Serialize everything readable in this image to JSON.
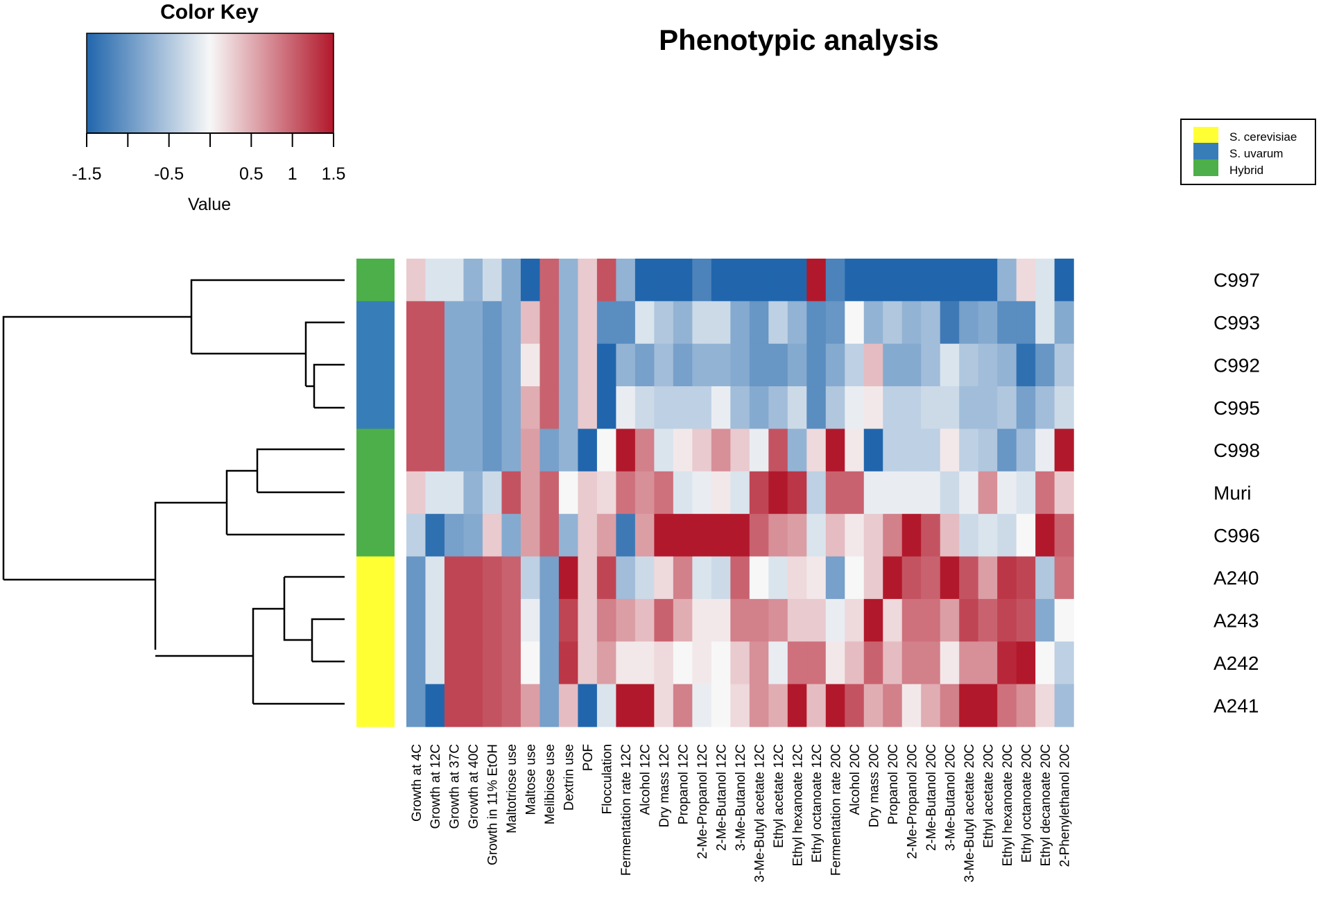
{
  "chart_data": {
    "type": "heatmap",
    "title": "Phenotypic analysis",
    "color_key": {
      "title": "Color Key",
      "xlabel": "Value",
      "range": [
        -1.5,
        1.5
      ],
      "tick_labels": [
        "-1.5",
        "-0.5",
        "0.5",
        "1",
        "1.5"
      ],
      "low_color": "#2166ac",
      "mid_color": "#f7f7f7",
      "high_color": "#b2182b"
    },
    "legend": {
      "position": "top-right",
      "entries": [
        {
          "label": "S. cerevisiae",
          "color": "#ffff33"
        },
        {
          "label": "S. uvarum",
          "color": "#377eb8"
        },
        {
          "label": "Hybrid",
          "color": "#4daf4a"
        }
      ]
    },
    "rows": [
      "C997",
      "C993",
      "C992",
      "C995",
      "C998",
      "Muri",
      "C996",
      "A240",
      "A243",
      "A242",
      "A241"
    ],
    "row_groups": [
      "Hybrid",
      "S. uvarum",
      "S. uvarum",
      "S. uvarum",
      "Hybrid",
      "Hybrid",
      "Hybrid",
      "S. cerevisiae",
      "S. cerevisiae",
      "S. cerevisiae",
      "S. cerevisiae"
    ],
    "columns": [
      "Growth at 4C",
      "Growth at 12C",
      "Growth at 37C",
      "Growth at 40C",
      "Growth in 11% EtOH",
      "Maltotriose use",
      "Maltose use",
      "Melibiose use",
      "Dextrin use",
      "POF",
      "Flocculation",
      "Fermentation rate 12C",
      "Alcohol 12C",
      "Dry mass 12C",
      "Propanol 12C",
      "2-Me-Propanol 12C",
      "2-Me-Butanol 12C",
      "3-Me-Butanol 12C",
      "3-Me-Butyl acetate 12C",
      "Ethyl acetate 12C",
      "Ethyl hexanoate 12C",
      "Ethyl octanoate 12C",
      "Fermentation rate 20C",
      "Alcohol 20C",
      "Dry mass 20C",
      "Propanol 20C",
      "2-Me-Propanol 20C",
      "2-Me-Butanol 20C",
      "3-Me-Butanol 20C",
      "3-Me-Butyl acetate 20C",
      "Ethyl acetate 20C",
      "Ethyl hexanoate 20C",
      "Ethyl octanoate 20C",
      "Ethyl decanoate 20C",
      "2-Phenylethanol 20C"
    ],
    "values": [
      [
        0.3,
        -0.2,
        -0.2,
        -0.7,
        -0.3,
        -0.8,
        -1.5,
        1.0,
        -0.7,
        0.3,
        1.1,
        -0.7,
        -1.5,
        -1.5,
        -1.5,
        -1.2,
        -1.5,
        -1.5,
        -1.5,
        -1.5,
        -1.5,
        1.5,
        -1.2,
        -1.5,
        -1.5,
        -1.5,
        -1.5,
        -1.5,
        -1.5,
        -1.5,
        -1.5,
        -0.7,
        0.2,
        -0.2,
        -1.5
      ],
      [
        1.1,
        1.1,
        -0.8,
        -0.8,
        -1.0,
        -0.8,
        0.4,
        1.0,
        -0.7,
        0.3,
        -1.1,
        -1.1,
        -0.2,
        -0.5,
        -0.7,
        -0.3,
        -0.3,
        -0.8,
        -1.0,
        -0.4,
        -0.7,
        -1.1,
        -1.0,
        0.0,
        -0.7,
        -0.5,
        -0.7,
        -0.6,
        -1.3,
        -0.9,
        -0.8,
        -1.1,
        -1.1,
        -0.2,
        -0.8
      ],
      [
        1.1,
        1.1,
        -0.8,
        -0.8,
        -1.0,
        -0.8,
        0.1,
        1.0,
        -0.7,
        0.3,
        -1.5,
        -0.7,
        -0.9,
        -0.6,
        -0.9,
        -0.7,
        -0.7,
        -0.8,
        -1.0,
        -1.0,
        -0.8,
        -1.1,
        -0.8,
        -0.4,
        0.4,
        -0.8,
        -0.8,
        -0.6,
        -0.2,
        -0.5,
        -0.6,
        -0.7,
        -1.4,
        -1.0,
        -0.5
      ],
      [
        1.1,
        1.1,
        -0.8,
        -0.8,
        -1.0,
        -0.8,
        0.5,
        1.0,
        -0.7,
        0.3,
        -1.5,
        -0.1,
        -0.3,
        -0.4,
        -0.4,
        -0.4,
        -0.1,
        -0.6,
        -0.8,
        -0.6,
        -0.3,
        -1.1,
        -0.5,
        -0.1,
        0.1,
        -0.4,
        -0.4,
        -0.3,
        -0.3,
        -0.6,
        -0.6,
        -0.5,
        -0.9,
        -0.6,
        -0.3
      ],
      [
        1.1,
        1.1,
        -0.8,
        -0.8,
        -1.0,
        -0.8,
        0.6,
        -0.9,
        -0.7,
        -1.5,
        0.0,
        1.5,
        0.8,
        -0.2,
        0.1,
        0.3,
        0.7,
        0.3,
        -0.1,
        1.1,
        -0.7,
        0.2,
        1.5,
        0.1,
        -1.5,
        -0.4,
        -0.4,
        -0.4,
        0.1,
        -0.4,
        -0.5,
        -1.0,
        -0.6,
        -0.1,
        1.5
      ],
      [
        0.3,
        -0.2,
        -0.2,
        -0.7,
        -0.3,
        1.1,
        0.6,
        1.0,
        0.0,
        0.3,
        0.2,
        0.9,
        0.7,
        0.9,
        -0.2,
        -0.1,
        0.1,
        -0.2,
        1.2,
        1.5,
        1.3,
        -0.4,
        1.0,
        1.0,
        -0.1,
        -0.1,
        -0.1,
        -0.1,
        -0.3,
        -0.1,
        0.7,
        -0.1,
        -0.2,
        0.9,
        0.3
      ],
      [
        -0.4,
        -1.4,
        -0.9,
        -0.8,
        0.3,
        -0.8,
        0.6,
        1.0,
        -0.7,
        0.3,
        0.6,
        -1.3,
        0.6,
        1.5,
        1.5,
        1.5,
        1.5,
        1.5,
        1.0,
        0.7,
        0.6,
        -0.2,
        0.4,
        0.1,
        0.3,
        0.8,
        1.5,
        1.1,
        0.4,
        -0.3,
        -0.2,
        -0.3,
        0.0,
        1.5,
        1.0
      ],
      [
        -1.0,
        -0.2,
        1.2,
        1.2,
        1.1,
        1.0,
        -0.4,
        -0.9,
        1.5,
        0.3,
        1.2,
        -0.6,
        -0.3,
        0.2,
        0.8,
        -0.2,
        -0.3,
        1.0,
        0.0,
        -0.2,
        0.2,
        0.1,
        -0.9,
        0.0,
        0.3,
        1.5,
        1.1,
        1.0,
        1.5,
        1.1,
        0.6,
        1.3,
        1.2,
        -0.5,
        0.9
      ],
      [
        -1.0,
        -0.2,
        1.2,
        1.2,
        1.1,
        1.0,
        -0.1,
        -0.9,
        1.2,
        0.3,
        0.8,
        0.6,
        0.4,
        1.0,
        0.5,
        0.1,
        0.1,
        0.8,
        0.8,
        0.7,
        0.3,
        0.3,
        -0.1,
        0.2,
        1.5,
        0.2,
        0.9,
        0.9,
        0.6,
        1.2,
        1.0,
        1.2,
        1.1,
        -0.8,
        0.0
      ],
      [
        -1.0,
        -0.2,
        1.2,
        1.2,
        1.1,
        1.0,
        0.0,
        -0.9,
        1.3,
        0.3,
        0.6,
        0.1,
        0.1,
        0.2,
        0.0,
        0.1,
        0.0,
        0.3,
        0.7,
        -0.1,
        0.9,
        0.9,
        0.1,
        0.4,
        1.0,
        0.4,
        0.8,
        0.8,
        0.1,
        0.7,
        0.7,
        1.4,
        1.5,
        0.0,
        -0.4
      ],
      [
        -1.0,
        -1.5,
        1.2,
        1.2,
        1.1,
        1.0,
        0.6,
        -0.9,
        0.4,
        -1.5,
        -0.2,
        1.5,
        1.5,
        0.2,
        0.8,
        -0.1,
        0.0,
        0.2,
        0.7,
        0.5,
        1.5,
        0.4,
        1.5,
        1.1,
        0.5,
        0.8,
        0.1,
        0.5,
        0.8,
        1.5,
        1.5,
        0.9,
        0.7,
        0.2,
        -0.6
      ]
    ]
  }
}
